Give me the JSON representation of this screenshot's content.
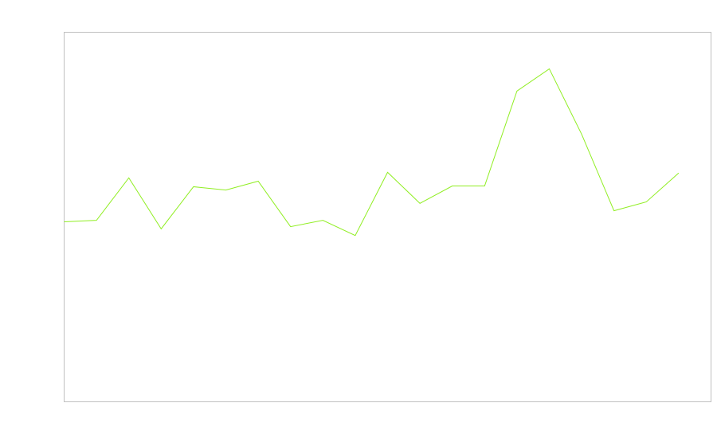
{
  "chart_data": {
    "type": "line",
    "title": "",
    "xlabel": "",
    "ylabel": "",
    "x": [
      0,
      1,
      2,
      3,
      4,
      5,
      6,
      7,
      8,
      9,
      10,
      11,
      12,
      13,
      14,
      15,
      16,
      17,
      18,
      19
    ],
    "series": [
      {
        "values": [
          48.7,
          49.1,
          60.6,
          46.8,
          58.2,
          57.3,
          59.7,
          47.4,
          49.1,
          45.0,
          62.1,
          53.7,
          58.4,
          58.4,
          84.1,
          90.1,
          72.4,
          51.7,
          54.1,
          61.9
        ],
        "color": "#90ee22"
      }
    ],
    "xlim": [
      0,
      20
    ],
    "ylim": [
      0,
      100
    ],
    "grid": false,
    "legend": "none",
    "frame_color": "#c0c0c0"
  }
}
